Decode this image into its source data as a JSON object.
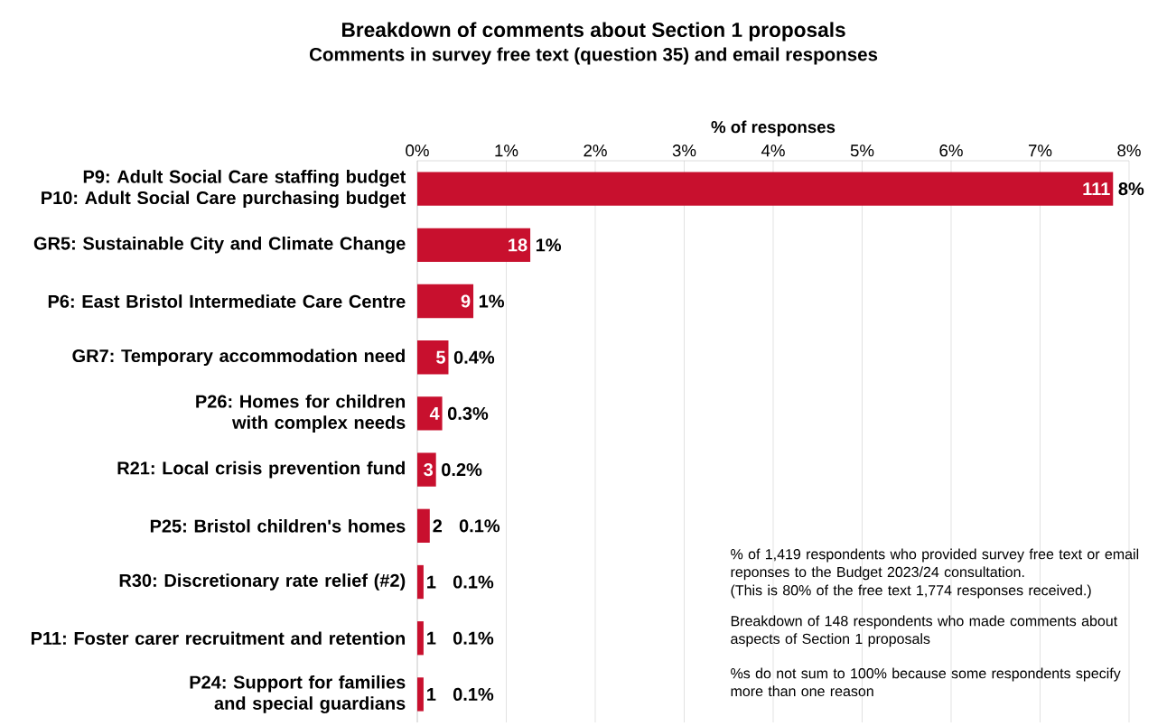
{
  "chart_data": {
    "type": "bar",
    "orientation": "horizontal",
    "title": "Breakdown of comments about Section 1 proposals",
    "subtitle": "Comments in survey free text (question 35) and email responses",
    "xlabel": "% of responses",
    "categories": [
      "P9: Adult Social Care staffing budget P10: Adult Social Care purchasing budget",
      "GR5: Sustainable City and Climate Change",
      "P6: East Bristol Intermediate Care Centre",
      "GR7: Temporary accommodation need",
      "P26: Homes for children with complex needs",
      "R21: Local crisis prevention fund",
      "P25: Bristol children's homes",
      "R30: Discretionary rate relief (#2)",
      "P11: Foster carer recruitment and retention",
      "P24: Support for families and special guardians"
    ],
    "values": [
      7.82,
      1.27,
      0.63,
      0.35,
      0.28,
      0.21,
      0.14,
      0.07,
      0.07,
      0.07
    ],
    "value_labels": [
      "8%",
      "1%",
      "1%",
      "0.4%",
      "0.3%",
      "0.2%",
      "0.1%",
      "0.1%",
      "0.1%",
      "0.1%"
    ],
    "color": "#c8102e",
    "xlim": [
      0,
      8
    ],
    "xticks": [
      {
        "value": 0,
        "label": "0%"
      },
      {
        "value": 1,
        "label": "1%"
      },
      {
        "value": 2,
        "label": "2%"
      },
      {
        "value": 3,
        "label": "3%"
      },
      {
        "value": 4,
        "label": "4%"
      },
      {
        "value": 5,
        "label": "5%"
      },
      {
        "value": 6,
        "label": "6%"
      },
      {
        "value": 7,
        "label": "7%"
      },
      {
        "value": 8,
        "label": "8%"
      }
    ],
    "grid": "x",
    "annotations": [
      {
        "text": "111",
        "x": 7.82,
        "y": "P9: Adult Social Care staffing budget P10: Adult Social Care purchasing budget"
      },
      {
        "text": "18",
        "x": 1.27,
        "y": "GR5: Sustainable City and Climate Change"
      },
      {
        "text": "9",
        "x": 0.63,
        "y": "P6: East Bristol Intermediate Care Centre"
      },
      {
        "text": "5",
        "x": 0.35,
        "y": "GR7: Temporary accommodation need"
      },
      {
        "text": "4",
        "x": 0.28,
        "y": "P26: Homes for children with complex needs"
      },
      {
        "text": "3",
        "x": 0.21,
        "y": "R21: Local crisis prevention fund"
      },
      {
        "text": "2",
        "x": 0.14,
        "y": "P25: Bristol children's homes"
      },
      {
        "text": "1",
        "x": 0.07,
        "y": "R30: Discretionary rate relief (#2)"
      },
      {
        "text": "1",
        "x": 0.07,
        "y": "P11: Foster carer recruitment and retention"
      },
      {
        "text": "1",
        "x": 0.07,
        "y": "P24: Support for families and special guardians"
      },
      "% of 1,419 respondents who provided survey free text or email reponses to the Budget 2023/24 consultation.",
      "(This is 80% of the free text 1,774 responses received.)",
      "Breakdown of 148 respondents who made comments about aspects of Section 1 proposals",
      "%s do not sum to 100% because some respondents specify more than one reason"
    ]
  }
}
